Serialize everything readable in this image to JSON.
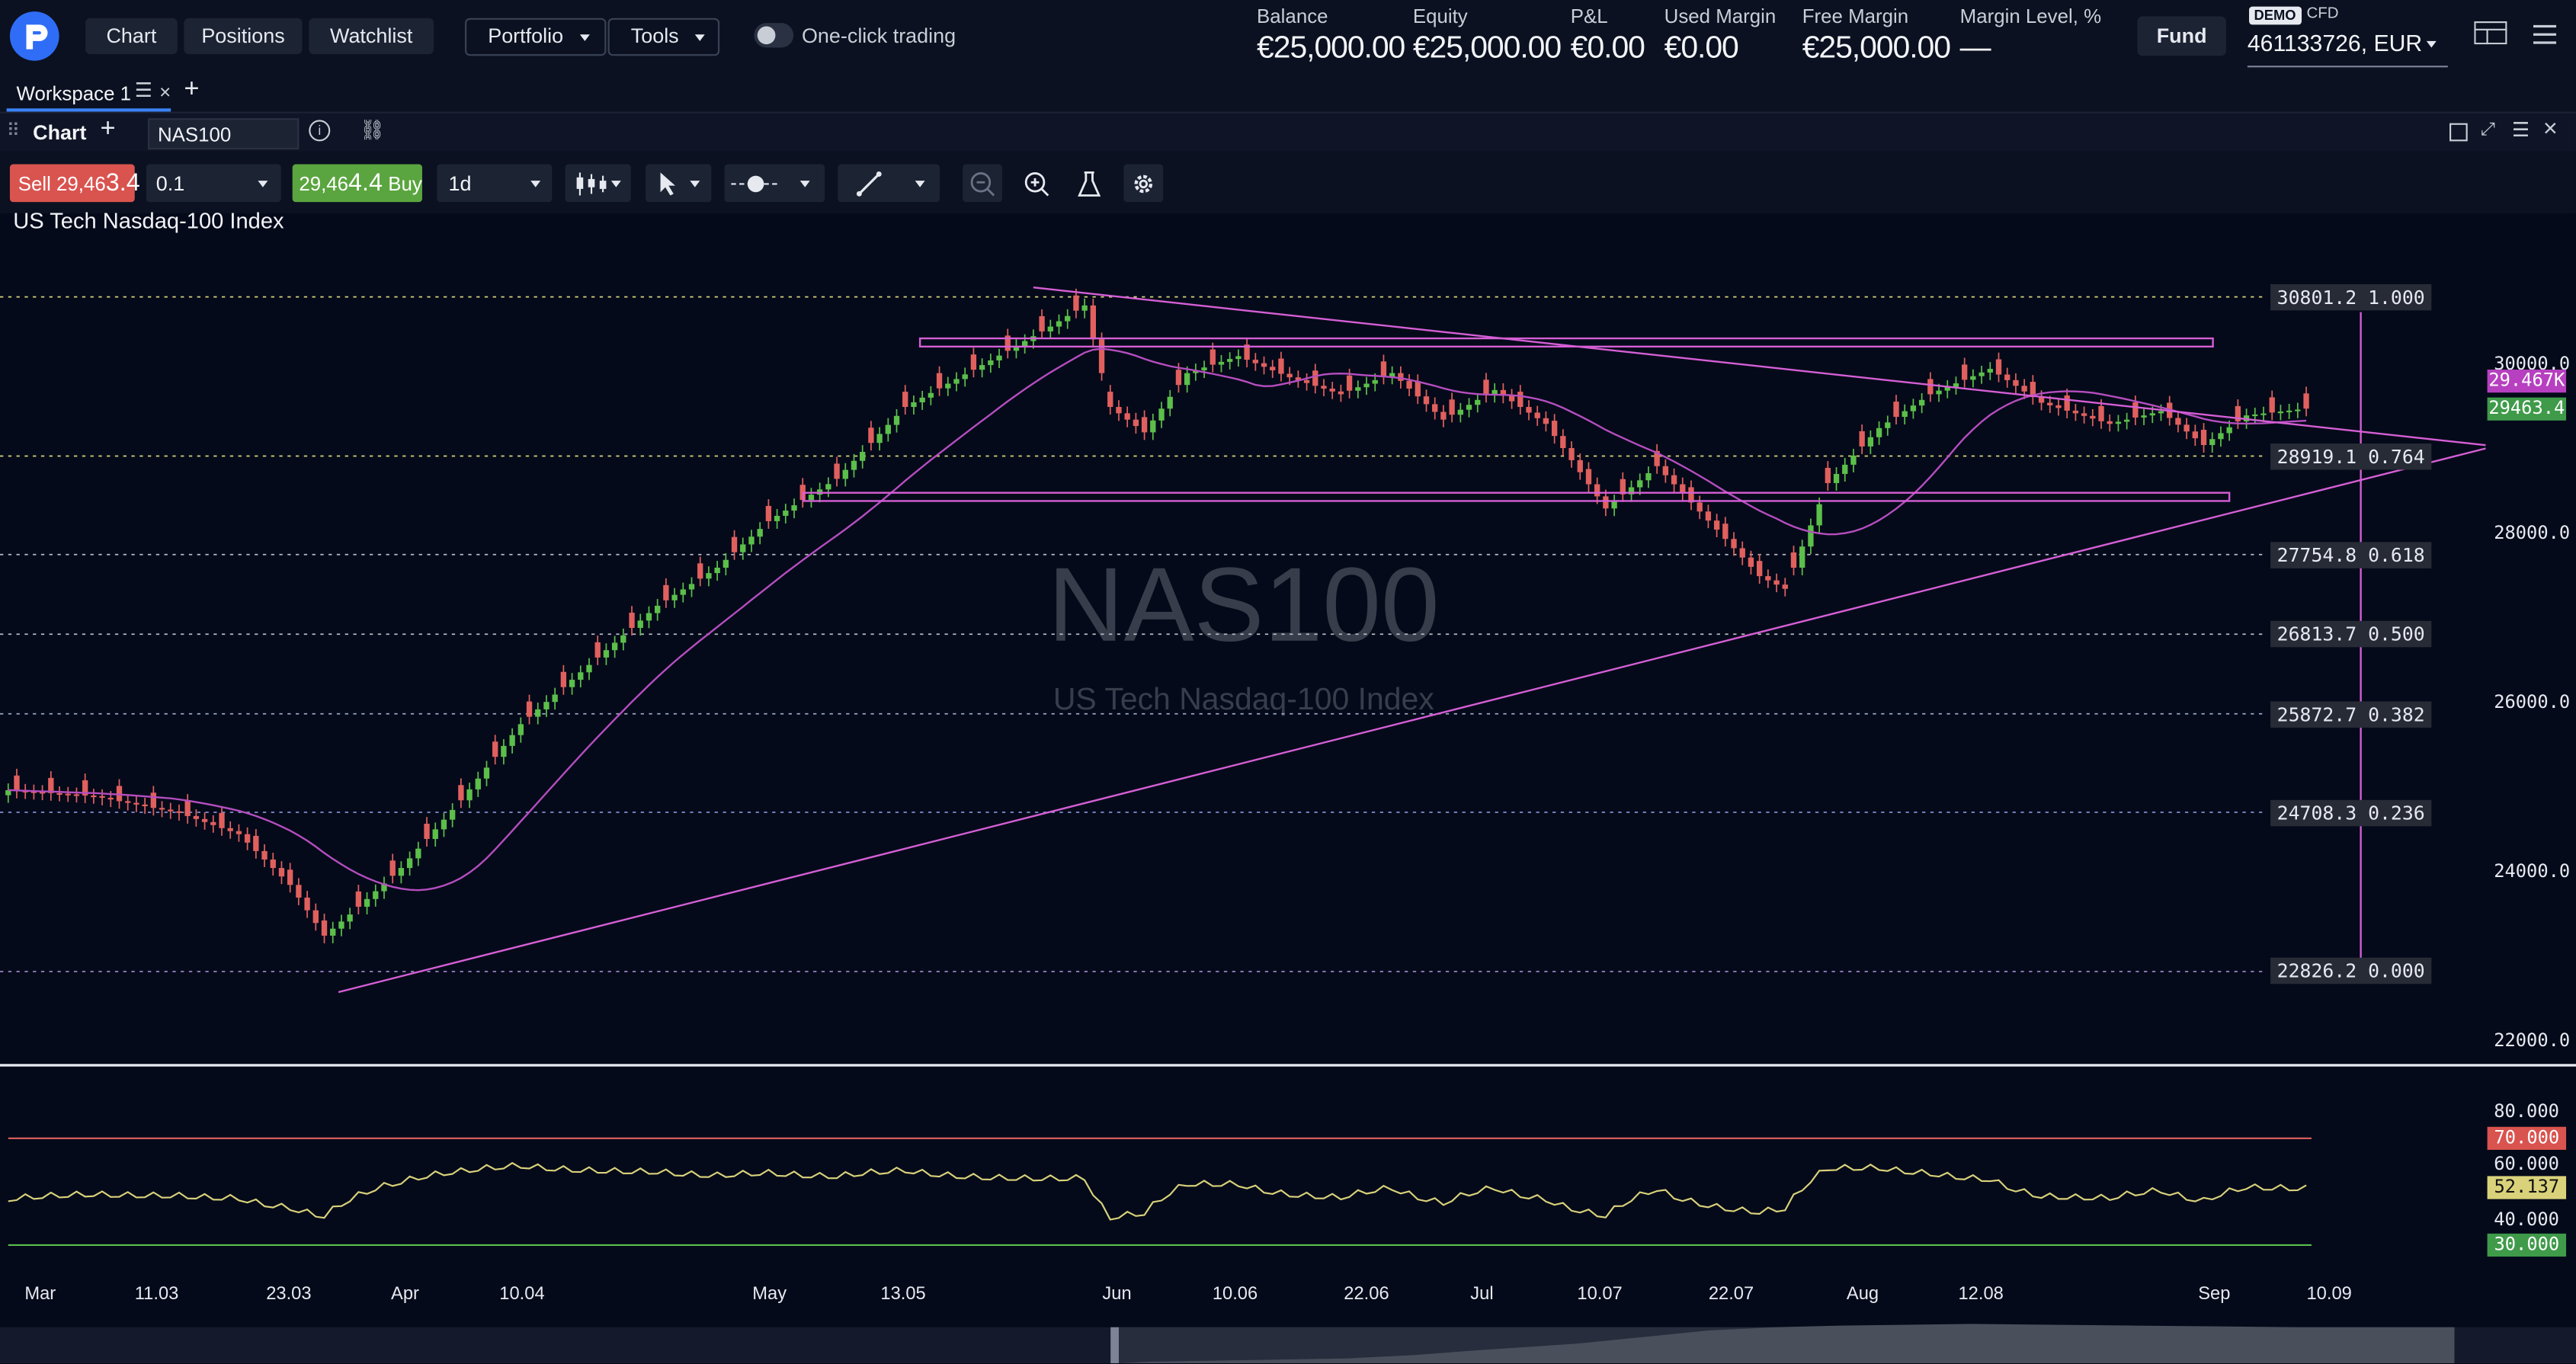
{
  "nav": {
    "logo_alt": "Pepperstone",
    "buttons": [
      "Chart",
      "Positions",
      "Watchlist"
    ],
    "portfolio": "Portfolio",
    "tools": "Tools",
    "one_click": "One-click trading"
  },
  "account": {
    "metrics": [
      {
        "label": "Balance",
        "value": "€25,000.00"
      },
      {
        "label": "Equity",
        "value": "€25,000.00"
      },
      {
        "label": "P&L",
        "value": "€0.00"
      },
      {
        "label": "Used Margin",
        "value": "€0.00"
      },
      {
        "label": "Free Margin",
        "value": "€25,000.00"
      },
      {
        "label": "Margin Level, %",
        "value": "—"
      }
    ],
    "fund": "Fund",
    "demo_badge": "DEMO",
    "account_type": "CFD",
    "account_id": "461133726, EUR"
  },
  "workspace": {
    "tab_label": "Workspace 1"
  },
  "panel": {
    "title": "Chart",
    "symbol": "NAS100"
  },
  "toolbar": {
    "sell_label": "Sell 29,46",
    "sell_big": "3.4",
    "quantity": "0.1",
    "buy_small": "29,46",
    "buy_big": "4.4",
    "buy_label": " Buy",
    "timeframe": "1d"
  },
  "chart": {
    "instrument_title": "US Tech Nasdaq-100 Index",
    "watermark_symbol": "NAS100",
    "watermark_name": "US Tech Nasdaq-100 Index",
    "y_ticks": [
      "30000.0",
      "28000.0",
      "26000.0",
      "24000.0",
      "22000.0"
    ],
    "x_ticks": [
      "Mar",
      "11.03",
      "23.03",
      "Apr",
      "10.04",
      "May",
      "13.05",
      "Jun",
      "10.06",
      "22.06",
      "Jul",
      "10.07",
      "22.07",
      "Aug",
      "12.08",
      "Sep",
      "10.09"
    ],
    "fib_levels": [
      {
        "price": "30801.2",
        "ratio": "1.000"
      },
      {
        "price": "28919.1",
        "ratio": "0.764"
      },
      {
        "price": "27754.8",
        "ratio": "0.618"
      },
      {
        "price": "26813.7",
        "ratio": "0.500"
      },
      {
        "price": "25872.7",
        "ratio": "0.382"
      },
      {
        "price": "24708.3",
        "ratio": "0.236"
      },
      {
        "price": "22826.2",
        "ratio": "0.000"
      }
    ],
    "badge_volume": "29.467K",
    "badge_price": "29463.4",
    "colors": {
      "up": "#5bbf4a",
      "down": "#e0605e",
      "drawing": "#d65fd6",
      "ma": "#b64ec0",
      "rsi": "#d9d27a"
    }
  },
  "rsi": {
    "y_ticks": [
      "80.000",
      "60.000",
      "40.000"
    ],
    "upper": "70.000",
    "current": "52.137",
    "lower": "30.000"
  }
}
